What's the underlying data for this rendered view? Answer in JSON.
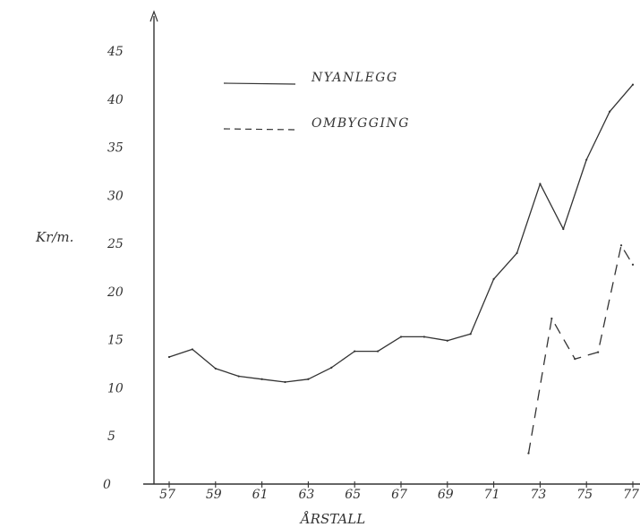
{
  "chart_data": {
    "type": "line",
    "title": "",
    "xlabel": "ÅRSTALL",
    "ylabel": "Kr/m.",
    "ylim": [
      0,
      45
    ],
    "xlim": [
      56,
      77
    ],
    "y_ticks": [
      "0",
      "5",
      "10",
      "15",
      "20",
      "25",
      "30",
      "35",
      "40",
      "45"
    ],
    "y_tick_values": [
      0,
      5,
      10,
      15,
      20,
      25,
      30,
      35,
      40,
      45
    ],
    "x_ticks": [
      "57",
      "59",
      "61",
      "63",
      "65",
      "67",
      "69",
      "71",
      "73",
      "75",
      "77"
    ],
    "x_tick_values": [
      57,
      59,
      61,
      63,
      65,
      67,
      69,
      71,
      73,
      75,
      77
    ],
    "grid": false,
    "legend_position": "top-center",
    "series": [
      {
        "name": "NYANLEGG",
        "style": "solid",
        "color": "#333333",
        "x": [
          57,
          58,
          59,
          60,
          61,
          62,
          63,
          64,
          65,
          66,
          67,
          68,
          69,
          70,
          71,
          72,
          73,
          74,
          75,
          76,
          77
        ],
        "y": [
          13.2,
          14.0,
          12.0,
          11.2,
          10.9,
          10.6,
          10.9,
          12.1,
          13.8,
          13.8,
          15.3,
          15.3,
          14.9,
          15.6,
          21.3,
          24.0,
          31.2,
          26.5,
          33.7,
          38.7,
          41.5
        ]
      },
      {
        "name": "OMBYGGING",
        "style": "dashed",
        "color": "#333333",
        "x": [
          72.5,
          73.5,
          74.5,
          75.5,
          76.5,
          77
        ],
        "y": [
          3.2,
          17.2,
          13.0,
          13.7,
          24.8,
          22.8
        ]
      }
    ]
  }
}
